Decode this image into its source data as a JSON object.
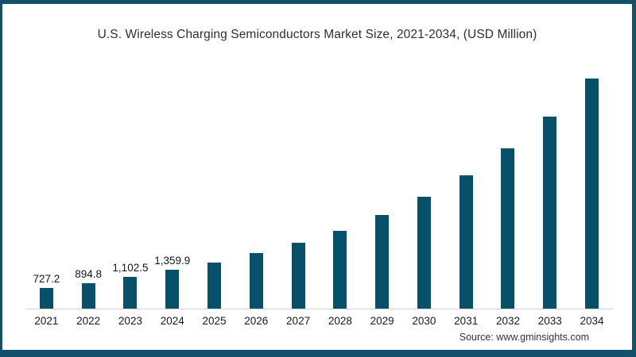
{
  "chart": {
    "title": "U.S. Wireless Charging Semiconductors Market Size, 2021-2034, (USD Million)",
    "source": "Source: www.gminsights.com"
  },
  "chart_data": {
    "type": "bar",
    "title": "U.S. Wireless Charging Semiconductors Market Size, 2021-2034, (USD Million)",
    "xlabel": "",
    "ylabel": "",
    "categories": [
      "2021",
      "2022",
      "2023",
      "2024",
      "2025",
      "2026",
      "2027",
      "2028",
      "2029",
      "2030",
      "2031",
      "2032",
      "2033",
      "2034"
    ],
    "values": [
      727.2,
      894.8,
      1102.5,
      1359.9,
      1610,
      1945,
      2290,
      2715,
      3260,
      3900,
      4655,
      5600,
      6700,
      8020
    ],
    "data_labels": [
      "727.2",
      "894.8",
      "1,102.5",
      "1,359.9",
      "",
      "",
      "",
      "",
      "",
      "",
      "",
      "",
      "",
      ""
    ],
    "ylim": [
      0,
      8400
    ],
    "grid": false,
    "legend": false,
    "bar_color": "#06506a"
  },
  "colors": {
    "frame_border": "#14506c",
    "bar": "#06506a",
    "axis_line": "#d2d2d2",
    "title_text": "#2b2f3a",
    "label_text": "#15151b"
  }
}
